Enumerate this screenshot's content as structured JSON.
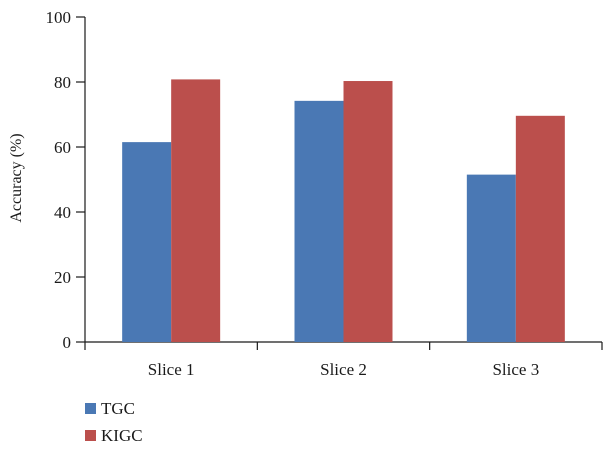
{
  "chart_data": {
    "type": "bar",
    "categories": [
      "Slice 1",
      "Slice 2",
      "Slice 3"
    ],
    "series": [
      {
        "name": "TGC",
        "values": [
          61.5,
          74.2,
          51.5
        ],
        "color": "#4a78b4"
      },
      {
        "name": "KIGC",
        "values": [
          80.8,
          80.3,
          69.6
        ],
        "color": "#bb4f4c"
      }
    ],
    "xlabel": "",
    "ylabel": "Accuracy (%)",
    "ylim": [
      0,
      100
    ],
    "yticks": [
      0,
      20,
      40,
      60,
      80,
      100
    ],
    "grid": false,
    "legend_position": "bottom-left"
  }
}
